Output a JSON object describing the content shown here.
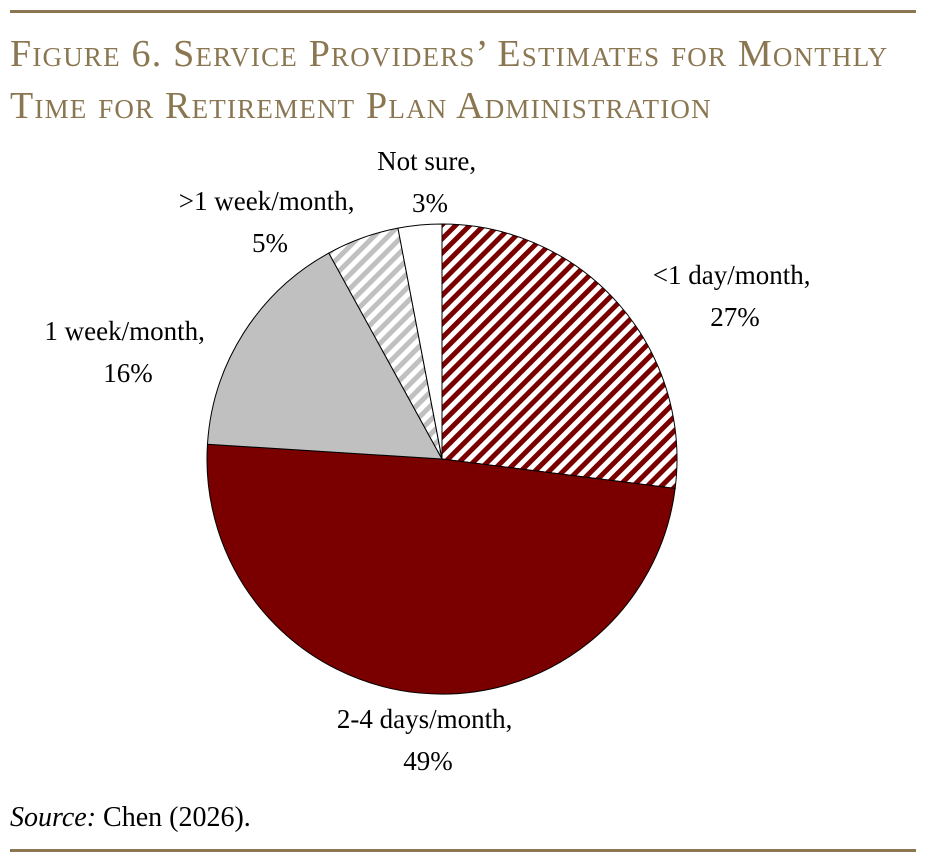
{
  "figure": {
    "title_line1": "Figure 6. Service Providers’ Estimates for Monthly",
    "title_line2": "Time for Retirement Plan Administration",
    "source_label": "Source:",
    "source_text": " Chen (2026)."
  },
  "chart_data": {
    "type": "pie",
    "title": "Figure 6. Service Providers’ Estimates for Monthly Time for Retirement Plan Administration",
    "slices": [
      {
        "label": "<1 day/month,",
        "value": 27,
        "value_label": "27%",
        "color": "#7a0000",
        "fill": "hatch-red"
      },
      {
        "label": "2-4 days/month,",
        "value": 49,
        "value_label": "49%",
        "color": "#7a0000",
        "fill": "solid"
      },
      {
        "label": "1 week/month,",
        "value": 16,
        "value_label": "16%",
        "color": "#c0c0c0",
        "fill": "solid"
      },
      {
        "label": ">1 week/month,",
        "value": 5,
        "value_label": "5%",
        "color": "#c0c0c0",
        "fill": "hatch-gray"
      },
      {
        "label": "Not sure,",
        "value": 3,
        "value_label": "3%",
        "color": "#ffffff",
        "fill": "solid"
      }
    ],
    "start_angle": "12 o'clock",
    "direction": "clockwise",
    "legend": "none"
  }
}
